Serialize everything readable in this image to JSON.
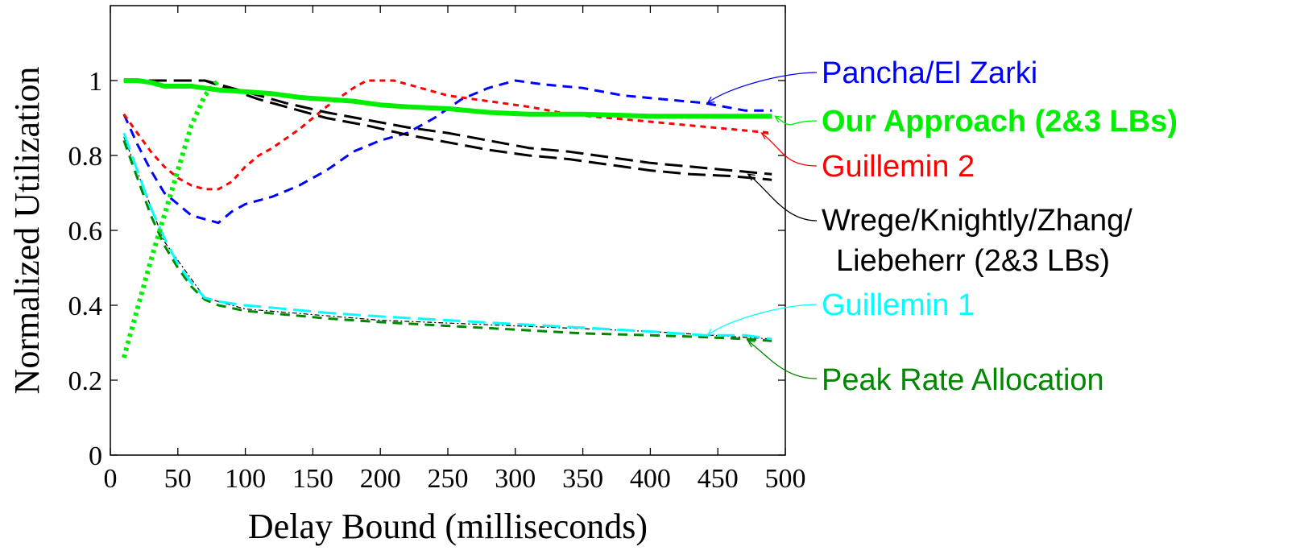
{
  "chart_data": {
    "type": "line",
    "xlabel": "Delay Bound (milliseconds)",
    "ylabel": "Normalized Utilization",
    "xlim": [
      0,
      500
    ],
    "ylim": [
      0,
      1.2
    ],
    "xticks": [
      0,
      50,
      100,
      150,
      200,
      250,
      300,
      350,
      400,
      450,
      500
    ],
    "xtick_labels": [
      "0",
      "50",
      "100",
      "150",
      "200",
      "250",
      "300",
      "350",
      "400",
      "450",
      "500"
    ],
    "yticks": [
      0,
      0.2,
      0.4,
      0.6,
      0.8,
      1
    ],
    "ytick_labels": [
      "0",
      "0.2",
      "0.4",
      "0.6",
      "0.8",
      "1"
    ],
    "grid": false,
    "legend_placement": "right (annotated labels with arrows)",
    "series": [
      {
        "key": "pancha",
        "name": "Pancha/El Zarki",
        "color": "#0000ff",
        "style": "dashed",
        "points": [
          [
            10,
            0.91
          ],
          [
            20,
            0.83
          ],
          [
            30,
            0.76
          ],
          [
            40,
            0.7
          ],
          [
            50,
            0.67
          ],
          [
            60,
            0.64
          ],
          [
            70,
            0.63
          ],
          [
            80,
            0.62
          ],
          [
            90,
            0.65
          ],
          [
            100,
            0.67
          ],
          [
            120,
            0.69
          ],
          [
            140,
            0.72
          ],
          [
            160,
            0.76
          ],
          [
            180,
            0.81
          ],
          [
            200,
            0.84
          ],
          [
            220,
            0.86
          ],
          [
            240,
            0.9
          ],
          [
            260,
            0.95
          ],
          [
            280,
            0.98
          ],
          [
            300,
            1.0
          ],
          [
            320,
            0.99
          ],
          [
            350,
            0.98
          ],
          [
            380,
            0.96
          ],
          [
            410,
            0.95
          ],
          [
            440,
            0.94
          ],
          [
            470,
            0.92
          ],
          [
            490,
            0.92
          ]
        ]
      },
      {
        "key": "ours",
        "name": "Our Approach (2&3 LBs)",
        "color": "#00ee00",
        "style": "solid-bold",
        "points": [
          [
            10,
            1.0
          ],
          [
            20,
            1.0
          ],
          [
            30,
            0.995
          ],
          [
            40,
            0.985
          ],
          [
            50,
            0.985
          ],
          [
            60,
            0.985
          ],
          [
            70,
            0.98
          ],
          [
            80,
            0.975
          ],
          [
            100,
            0.97
          ],
          [
            120,
            0.965
          ],
          [
            140,
            0.955
          ],
          [
            160,
            0.95
          ],
          [
            180,
            0.945
          ],
          [
            200,
            0.935
          ],
          [
            220,
            0.93
          ],
          [
            250,
            0.925
          ],
          [
            280,
            0.915
          ],
          [
            310,
            0.91
          ],
          [
            350,
            0.91
          ],
          [
            400,
            0.905
          ],
          [
            440,
            0.905
          ],
          [
            470,
            0.905
          ],
          [
            490,
            0.905
          ]
        ]
      },
      {
        "key": "ours_ramp",
        "name": "",
        "color": "#00ee00",
        "style": "dotted-bold",
        "points": [
          [
            10,
            0.26
          ],
          [
            20,
            0.39
          ],
          [
            30,
            0.52
          ],
          [
            40,
            0.64
          ],
          [
            50,
            0.76
          ],
          [
            60,
            0.88
          ],
          [
            70,
            0.96
          ],
          [
            80,
            1.0
          ]
        ]
      },
      {
        "key": "guillemin2",
        "name": "Guillemin 2",
        "color": "#ff0000",
        "style": "dashed-short",
        "points": [
          [
            10,
            0.91
          ],
          [
            20,
            0.86
          ],
          [
            30,
            0.81
          ],
          [
            40,
            0.77
          ],
          [
            50,
            0.74
          ],
          [
            60,
            0.72
          ],
          [
            70,
            0.71
          ],
          [
            80,
            0.71
          ],
          [
            90,
            0.73
          ],
          [
            100,
            0.77
          ],
          [
            110,
            0.8
          ],
          [
            120,
            0.82
          ],
          [
            140,
            0.87
          ],
          [
            160,
            0.93
          ],
          [
            180,
            0.98
          ],
          [
            190,
            1.0
          ],
          [
            210,
            1.0
          ],
          [
            230,
            0.98
          ],
          [
            250,
            0.96
          ],
          [
            270,
            0.95
          ],
          [
            290,
            0.94
          ],
          [
            310,
            0.93
          ],
          [
            340,
            0.91
          ],
          [
            370,
            0.9
          ],
          [
            400,
            0.89
          ],
          [
            430,
            0.88
          ],
          [
            460,
            0.87
          ],
          [
            490,
            0.86
          ]
        ]
      },
      {
        "key": "wrege_upper",
        "name": "Wrege/Knightly/Zhang/",
        "color": "#000000",
        "style": "dashed-long",
        "points": [
          [
            10,
            1.0
          ],
          [
            40,
            1.0
          ],
          [
            70,
            1.0
          ],
          [
            90,
            0.98
          ],
          [
            110,
            0.96
          ],
          [
            130,
            0.94
          ],
          [
            160,
            0.915
          ],
          [
            190,
            0.895
          ],
          [
            220,
            0.875
          ],
          [
            250,
            0.86
          ],
          [
            280,
            0.84
          ],
          [
            310,
            0.82
          ],
          [
            340,
            0.81
          ],
          [
            370,
            0.795
          ],
          [
            400,
            0.78
          ],
          [
            430,
            0.77
          ],
          [
            460,
            0.76
          ],
          [
            490,
            0.75
          ]
        ]
      },
      {
        "key": "wrege_lower",
        "name": "Liebeherr (2&3 LBs)",
        "color": "#000000",
        "style": "dashed-long",
        "points": [
          [
            10,
            1.0
          ],
          [
            40,
            1.0
          ],
          [
            70,
            1.0
          ],
          [
            90,
            0.975
          ],
          [
            110,
            0.95
          ],
          [
            130,
            0.93
          ],
          [
            160,
            0.9
          ],
          [
            190,
            0.88
          ],
          [
            220,
            0.855
          ],
          [
            250,
            0.835
          ],
          [
            280,
            0.815
          ],
          [
            310,
            0.8
          ],
          [
            340,
            0.79
          ],
          [
            370,
            0.775
          ],
          [
            400,
            0.76
          ],
          [
            430,
            0.75
          ],
          [
            460,
            0.745
          ],
          [
            490,
            0.735
          ]
        ]
      },
      {
        "key": "guillemin1",
        "name": "Guillemin 1",
        "color": "#00ffff",
        "style": "dashed-long",
        "points": [
          [
            10,
            0.86
          ],
          [
            20,
            0.76
          ],
          [
            30,
            0.66
          ],
          [
            40,
            0.58
          ],
          [
            50,
            0.51
          ],
          [
            60,
            0.46
          ],
          [
            70,
            0.42
          ],
          [
            80,
            0.41
          ],
          [
            100,
            0.4
          ],
          [
            130,
            0.39
          ],
          [
            160,
            0.38
          ],
          [
            200,
            0.37
          ],
          [
            250,
            0.36
          ],
          [
            300,
            0.35
          ],
          [
            350,
            0.34
          ],
          [
            400,
            0.33
          ],
          [
            440,
            0.32
          ],
          [
            470,
            0.32
          ],
          [
            490,
            0.31
          ]
        ]
      },
      {
        "key": "peak",
        "name": "Peak Rate Allocation",
        "color": "#008800",
        "style": "dashed",
        "points": [
          [
            10,
            0.84
          ],
          [
            20,
            0.74
          ],
          [
            30,
            0.64
          ],
          [
            40,
            0.56
          ],
          [
            50,
            0.5
          ],
          [
            60,
            0.45
          ],
          [
            70,
            0.415
          ],
          [
            80,
            0.4
          ],
          [
            100,
            0.385
          ],
          [
            130,
            0.375
          ],
          [
            160,
            0.365
          ],
          [
            200,
            0.355
          ],
          [
            250,
            0.345
          ],
          [
            300,
            0.335
          ],
          [
            350,
            0.325
          ],
          [
            400,
            0.32
          ],
          [
            440,
            0.315
          ],
          [
            470,
            0.31
          ],
          [
            490,
            0.305
          ]
        ]
      },
      {
        "key": "peak_thin",
        "name": "",
        "color": "#000000",
        "style": "dash-dot-thin",
        "points": [
          [
            10,
            0.85
          ],
          [
            40,
            0.57
          ],
          [
            70,
            0.42
          ],
          [
            100,
            0.39
          ],
          [
            200,
            0.36
          ],
          [
            300,
            0.345
          ],
          [
            400,
            0.33
          ],
          [
            490,
            0.31
          ]
        ]
      }
    ],
    "annotations": [
      {
        "target": "pancha",
        "text": "Pancha/El Zarki",
        "color": "#0000ff",
        "point": [
          440,
          0.94
        ],
        "bold": false
      },
      {
        "target": "ours",
        "text": "Our Approach (2&3 LBs)",
        "color": "#00ee00",
        "point": [
          490,
          0.905
        ],
        "bold": true
      },
      {
        "target": "guillemin2",
        "text": "Guillemin 2",
        "color": "#ff0000",
        "point": [
          480,
          0.86
        ],
        "bold": false
      },
      {
        "target": "wrege",
        "text": "Wrege/Knightly/Zhang/",
        "text2": "Liebeherr (2&3 LBs)",
        "color": "#000000",
        "point": [
          470,
          0.75
        ],
        "bold": false
      },
      {
        "target": "guillemin1",
        "text": "Guillemin 1",
        "color": "#00ffff",
        "point": [
          440,
          0.32
        ],
        "bold": false
      },
      {
        "target": "peak",
        "text": "Peak Rate Allocation",
        "color": "#008800",
        "point": [
          470,
          0.305
        ],
        "bold": false
      }
    ]
  }
}
